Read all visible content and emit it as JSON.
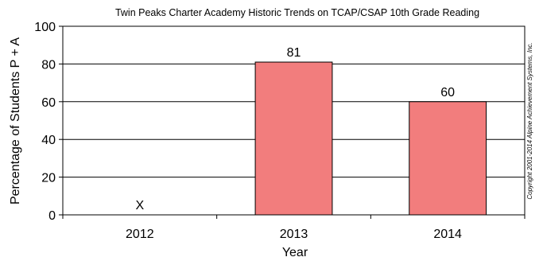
{
  "chart_data": {
    "type": "bar",
    "title": "Twin Peaks Charter Academy Historic Trends on TCAP/CSAP 10th Grade Reading",
    "xlabel": "Year",
    "ylabel": "Percentage of Students P + A",
    "categories": [
      "2012",
      "2013",
      "2014"
    ],
    "values": [
      null,
      81,
      60
    ],
    "data_labels": [
      "X",
      "81",
      "60"
    ],
    "ylim": [
      0,
      100
    ],
    "yticks": [
      0,
      20,
      40,
      60,
      80,
      100
    ],
    "ytick_labels": [
      "0",
      "20",
      "40",
      "60",
      "80",
      "100"
    ],
    "grid": true,
    "bar_color": "#f27d7d",
    "copyright": "Copyright 2001-2014 Alpine Achievement Systems, Inc."
  }
}
